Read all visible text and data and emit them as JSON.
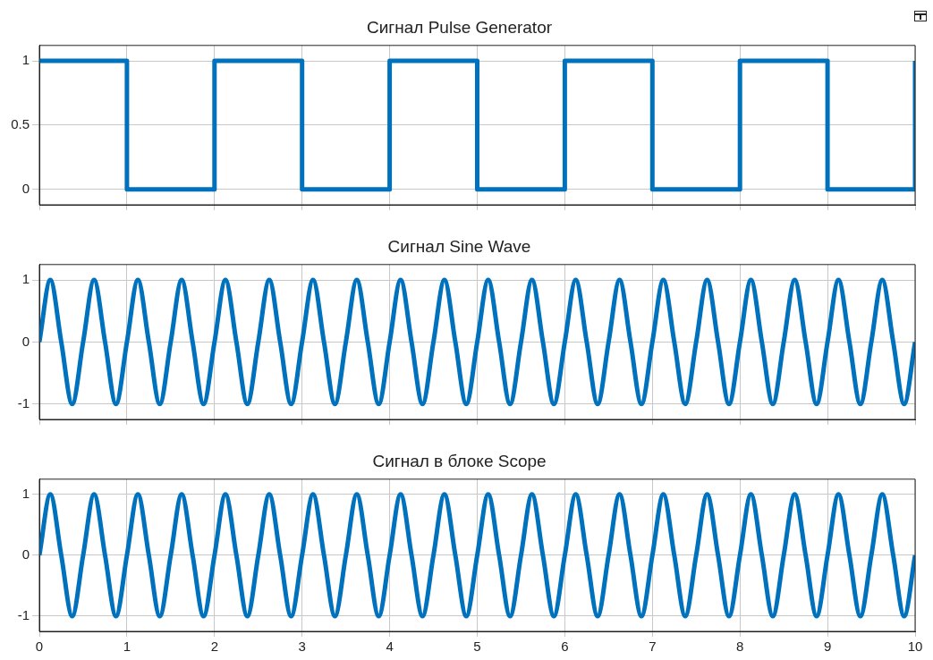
{
  "chart_data": [
    {
      "type": "step",
      "title": "Сигнал Pulse Generator",
      "x": [
        0,
        1,
        2,
        3,
        4,
        5,
        6,
        7,
        8,
        9,
        10
      ],
      "series": [
        {
          "color": "#0072bd",
          "values": [
            1,
            0,
            1,
            0,
            1,
            0,
            1,
            0,
            1,
            0,
            1
          ]
        }
      ],
      "xlim": [
        0,
        10
      ],
      "xticks": [
        0,
        1,
        2,
        3,
        4,
        5,
        6,
        7,
        8,
        9,
        10
      ],
      "ylim": [
        -0.12,
        1.12
      ],
      "yticks": [
        0,
        0.5,
        1
      ],
      "grid": true,
      "legend": false,
      "tick_labels": "y",
      "marker": "none",
      "line_style": "solid"
    },
    {
      "type": "line",
      "title": "Сигнал Sine Wave",
      "x": [
        0,
        0.125,
        0.25,
        0.375,
        0.5,
        0.625,
        0.75,
        0.875,
        1,
        1.125,
        1.25,
        1.375,
        1.5,
        1.625,
        1.75,
        1.875,
        2,
        2.125,
        2.25,
        2.375,
        2.5,
        2.625,
        2.75,
        2.875,
        3,
        3.125,
        3.25,
        3.375,
        3.5,
        3.625,
        3.75,
        3.875,
        4,
        4.125,
        4.25,
        4.375,
        4.5,
        4.625,
        4.75,
        4.875,
        5,
        5.125,
        5.25,
        5.375,
        5.5,
        5.625,
        5.75,
        5.875,
        6,
        6.125,
        6.25,
        6.375,
        6.5,
        6.625,
        6.75,
        6.875,
        7,
        7.125,
        7.25,
        7.375,
        7.5,
        7.625,
        7.75,
        7.875,
        8,
        8.125,
        8.25,
        8.375,
        8.5,
        8.625,
        8.75,
        8.875,
        9,
        9.125,
        9.25,
        9.375,
        9.5,
        9.625,
        9.75,
        9.875,
        10
      ],
      "series": [
        {
          "color": "#0072bd",
          "values": [
            0,
            1,
            0,
            -1,
            0,
            1,
            0,
            -1,
            0,
            1,
            0,
            -1,
            0,
            1,
            0,
            -1,
            0,
            1,
            0,
            -1,
            0,
            1,
            0,
            -1,
            0,
            1,
            0,
            -1,
            0,
            1,
            0,
            -1,
            0,
            1,
            0,
            -1,
            0,
            1,
            0,
            -1,
            0,
            1,
            0,
            -1,
            0,
            1,
            0,
            -1,
            0,
            1,
            0,
            -1,
            0,
            1,
            0,
            -1,
            0,
            1,
            0,
            -1,
            0,
            1,
            0,
            -1,
            0,
            1,
            0,
            -1,
            0,
            1,
            0,
            -1,
            0,
            1,
            0,
            -1,
            0,
            1,
            0,
            -1,
            0
          ]
        }
      ],
      "xlim": [
        0,
        10
      ],
      "xticks": [
        0,
        1,
        2,
        3,
        4,
        5,
        6,
        7,
        8,
        9,
        10
      ],
      "ylim": [
        -1.25,
        1.25
      ],
      "yticks": [
        -1,
        0,
        1
      ],
      "grid": true,
      "legend": false,
      "tick_labels": "y",
      "marker": "none",
      "line_style": "solid"
    },
    {
      "type": "line",
      "title": "Сигнал в блоке Scope",
      "x": [
        0,
        0.125,
        0.25,
        0.375,
        0.5,
        0.625,
        0.75,
        0.875,
        1,
        1.125,
        1.25,
        1.375,
        1.5,
        1.625,
        1.75,
        1.875,
        2,
        2.125,
        2.25,
        2.375,
        2.5,
        2.625,
        2.75,
        2.875,
        3,
        3.125,
        3.25,
        3.375,
        3.5,
        3.625,
        3.75,
        3.875,
        4,
        4.125,
        4.25,
        4.375,
        4.5,
        4.625,
        4.75,
        4.875,
        5,
        5.125,
        5.25,
        5.375,
        5.5,
        5.625,
        5.75,
        5.875,
        6,
        6.125,
        6.25,
        6.375,
        6.5,
        6.625,
        6.75,
        6.875,
        7,
        7.125,
        7.25,
        7.375,
        7.5,
        7.625,
        7.75,
        7.875,
        8,
        8.125,
        8.25,
        8.375,
        8.5,
        8.625,
        8.75,
        8.875,
        9,
        9.125,
        9.25,
        9.375,
        9.5,
        9.625,
        9.75,
        9.875,
        10
      ],
      "series": [
        {
          "color": "#0072bd",
          "values": [
            0,
            1,
            0,
            -1,
            0,
            1,
            0,
            -1,
            0,
            1,
            0,
            -1,
            0,
            1,
            0,
            -1,
            0,
            1,
            0,
            -1,
            0,
            1,
            0,
            -1,
            0,
            1,
            0,
            -1,
            0,
            1,
            0,
            -1,
            0,
            1,
            0,
            -1,
            0,
            1,
            0,
            -1,
            0,
            1,
            0,
            -1,
            0,
            1,
            0,
            -1,
            0,
            1,
            0,
            -1,
            0,
            1,
            0,
            -1,
            0,
            1,
            0,
            -1,
            0,
            1,
            0,
            -1,
            0,
            1,
            0,
            -1,
            0,
            1,
            0,
            -1,
            0,
            1,
            0,
            -1,
            0,
            1,
            0,
            -1,
            0
          ]
        }
      ],
      "xlim": [
        0,
        10
      ],
      "xticks": [
        0,
        1,
        2,
        3,
        4,
        5,
        6,
        7,
        8,
        9,
        10
      ],
      "ylim": [
        -1.25,
        1.25
      ],
      "yticks": [
        -1,
        0,
        1
      ],
      "grid": true,
      "legend": false,
      "marker": "none",
      "line_style": "solid"
    }
  ]
}
